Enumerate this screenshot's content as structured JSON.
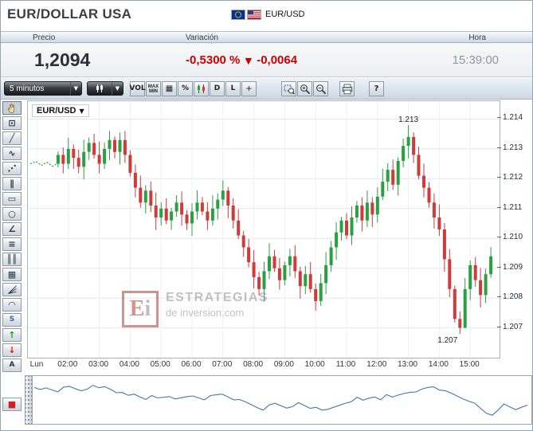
{
  "header": {
    "title": "EUR/DOLLAR USA",
    "pair": "EUR/USD"
  },
  "quote": {
    "precio_label": "Precio",
    "variacion_label": "Variación",
    "hora_label": "Hora",
    "price": "1,2094",
    "variation_pct": "-0,5300 %",
    "variation_arrow": "▼",
    "variation_abs": "-0,0064",
    "time": "15:39:00",
    "negative_color": "#cc0000"
  },
  "toolbar": {
    "interval_dropdown": {
      "label": "5 minutos"
    },
    "dropdown_arrow": "▼",
    "buttons": [
      {
        "name": "volume-button",
        "icon": "volume-icon",
        "label": "VOL"
      },
      {
        "name": "maxmin-button",
        "icon": "maxmin-icon",
        "label": "MAX",
        "label2": "MIN"
      },
      {
        "name": "grid-toggle-button",
        "icon": "grid-icon",
        "glyph": "▦"
      },
      {
        "name": "percent-scale-button",
        "icon": "percent-icon",
        "label": "%"
      },
      {
        "name": "candle-chart-button",
        "icon": "candlestick-icon",
        "svg": "candles-tb"
      },
      {
        "name": "daily-button",
        "icon": "daily-icon",
        "label": "D"
      },
      {
        "name": "line-chart-button",
        "icon": "line-chart-icon",
        "label": "L"
      },
      {
        "name": "crosshair-button",
        "icon": "crosshair-icon",
        "glyph": "+"
      }
    ],
    "zoom_buttons": [
      {
        "name": "zoom-area-button",
        "icon": "zoom-area-icon",
        "svg": "zoom-area"
      },
      {
        "name": "zoom-in-button",
        "icon": "zoom-in-icon",
        "svg": "magnifier-plus"
      },
      {
        "name": "zoom-out-button",
        "icon": "zoom-out-icon",
        "svg": "magnifier-minus"
      }
    ],
    "print_button": {
      "name": "print-button",
      "icon": "printer-icon",
      "svg": "printer"
    },
    "help_button": {
      "label": "?"
    }
  },
  "sidebar": {
    "tools": [
      {
        "name": "pan-tool",
        "icon": "hand-icon",
        "svg": "hand"
      },
      {
        "name": "pointer-window-tool",
        "icon": "screen-icon",
        "glyph": "⊡"
      },
      {
        "name": "trendline-tool",
        "icon": "diagonal-line-icon",
        "glyph": "╱"
      },
      {
        "name": "freehand-tool",
        "icon": "wave-line-icon",
        "glyph": "∿"
      },
      {
        "name": "ray-tool",
        "icon": "dotted-diagonal-icon",
        "glyph": "⋰"
      },
      {
        "name": "parallel-lines-tool",
        "icon": "parallel-lines-icon",
        "glyph": "∥"
      },
      {
        "name": "rectangle-tool",
        "icon": "rectangle-icon",
        "glyph": "▭"
      },
      {
        "name": "ellipse-tool",
        "icon": "ellipse-icon",
        "glyph": "○"
      },
      {
        "name": "angle-tool",
        "icon": "angle-icon",
        "glyph": "∠"
      },
      {
        "name": "fibo-retracement-tool",
        "icon": "horizontal-lines-icon",
        "glyph": "≡"
      },
      {
        "name": "fibo-timezones-tool",
        "icon": "vertical-lines-icon",
        "glyph": "║║"
      },
      {
        "name": "grid-tool",
        "icon": "grid-dots-icon",
        "glyph": "▦"
      },
      {
        "name": "fibo-fan-tool",
        "icon": "fan-lines-icon",
        "svg": "fan"
      },
      {
        "name": "fibo-arcs-tool",
        "icon": "arcs-icon",
        "glyph": "◠"
      },
      {
        "name": "zigzag-tool",
        "icon": "s-wave-icon",
        "label": "S",
        "color": "#2b6cb0"
      },
      {
        "name": "buy-marker-tool",
        "icon": "up-arrow-icon",
        "glyph": "↑",
        "color": "#1a9a3c"
      },
      {
        "name": "sell-marker-tool",
        "icon": "down-arrow-icon",
        "glyph": "↓",
        "color": "#cc2222"
      },
      {
        "name": "text-tool",
        "icon": "letter-a-icon",
        "label": "A"
      },
      {
        "name": "delete-tool",
        "icon": "red-square-icon",
        "glyph": "■",
        "color": "#cc2222",
        "gap_before": 30
      }
    ]
  },
  "chart": {
    "symbol": "EUR/USD",
    "symbol_arrow": "▼",
    "y_ticks": [
      "1.214",
      "1.213",
      "1.212",
      "1.211",
      "1.210",
      "1.209",
      "1.208",
      "1.207"
    ],
    "x_ticks": [
      {
        "label": "Lun",
        "hour": 1
      },
      {
        "label": "02:00",
        "hour": 2
      },
      {
        "label": "03:00",
        "hour": 3
      },
      {
        "label": "04:00",
        "hour": 4
      },
      {
        "label": "05:00",
        "hour": 5
      },
      {
        "label": "06:00",
        "hour": 6
      },
      {
        "label": "07:00",
        "hour": 7
      },
      {
        "label": "08:00",
        "hour": 8
      },
      {
        "label": "09:00",
        "hour": 9
      },
      {
        "label": "10:00",
        "hour": 10
      },
      {
        "label": "11:00",
        "hour": 11
      },
      {
        "label": "12:00",
        "hour": 12
      },
      {
        "label": "13:00",
        "hour": 13
      },
      {
        "label": "14:00",
        "hour": 14
      },
      {
        "label": "15:00",
        "hour": 15
      }
    ],
    "annotations": {
      "high_label": "1.213",
      "low_label": "1.207"
    },
    "watermark": {
      "logo_e": "E",
      "logo_i": "i",
      "line1": "ESTRATEGIAS",
      "line2": "de inversion.com"
    }
  },
  "chart_data": {
    "type": "candlestick",
    "pair": "EUR/USD",
    "sampling_minutes": 10,
    "start_hour_decimal": 1.6667,
    "first_open": 1.2125,
    "day_high": 1.2138,
    "day_low": 1.2068,
    "gap_line_level": 1.2125,
    "ylim": [
      1.206,
      1.2146
    ],
    "up_color": "#2aa043",
    "down_color": "#cf3b3b",
    "navigator_line_color": "#4a76a8",
    "closes": [
      1.2128,
      1.2125,
      1.213,
      1.2127,
      1.2124,
      1.2129,
      1.2132,
      1.2128,
      1.2125,
      1.213,
      1.2133,
      1.2129,
      1.2133,
      1.2128,
      1.2122,
      1.2117,
      1.2112,
      1.2116,
      1.2111,
      1.2107,
      1.211,
      1.2106,
      1.2109,
      1.2112,
      1.2108,
      1.2105,
      1.2109,
      1.2112,
      1.2109,
      1.2106,
      1.211,
      1.2113,
      1.2116,
      1.2111,
      1.2106,
      1.2101,
      1.2097,
      1.2092,
      1.2087,
      1.2083,
      1.2089,
      1.2094,
      1.209,
      1.2086,
      1.2091,
      1.2094,
      1.2089,
      1.2084,
      1.2088,
      1.2083,
      1.2079,
      1.2085,
      1.2091,
      1.2097,
      1.2102,
      1.2106,
      1.2101,
      1.2107,
      1.2111,
      1.2106,
      1.2112,
      1.2108,
      1.2114,
      1.2119,
      1.2123,
      1.2118,
      1.2126,
      1.2131,
      1.2134,
      1.2128,
      1.2121,
      1.2117,
      1.2112,
      1.2107,
      1.2103,
      1.2093,
      1.2083,
      1.2073,
      1.207,
      1.2083,
      1.2091,
      1.2086,
      1.2081,
      1.2088,
      1.2094
    ]
  }
}
